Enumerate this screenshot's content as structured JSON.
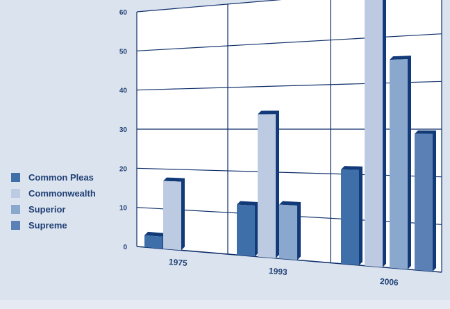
{
  "chart_data": {
    "type": "bar",
    "categories": [
      "1975",
      "1993",
      "2006"
    ],
    "series": [
      {
        "name": "Common Pleas",
        "color": "#3f6fa8",
        "values": [
          3,
          12,
          21
        ]
      },
      {
        "name": "Commonwealth",
        "color": "#bccbe1",
        "values": [
          17,
          33.5,
          60
        ]
      },
      {
        "name": "Superior",
        "color": "#8aa7cd",
        "values": [
          null,
          12.5,
          45
        ]
      },
      {
        "name": "Supreme",
        "color": "#5b80b5",
        "values": [
          null,
          null,
          29
        ]
      }
    ],
    "ylim": [
      0,
      60
    ],
    "yticks": [
      "0",
      "10",
      "20",
      "30",
      "40",
      "50",
      "60"
    ],
    "grid": true,
    "legend_position": "left",
    "title": "",
    "xlabel": "",
    "ylabel": ""
  }
}
